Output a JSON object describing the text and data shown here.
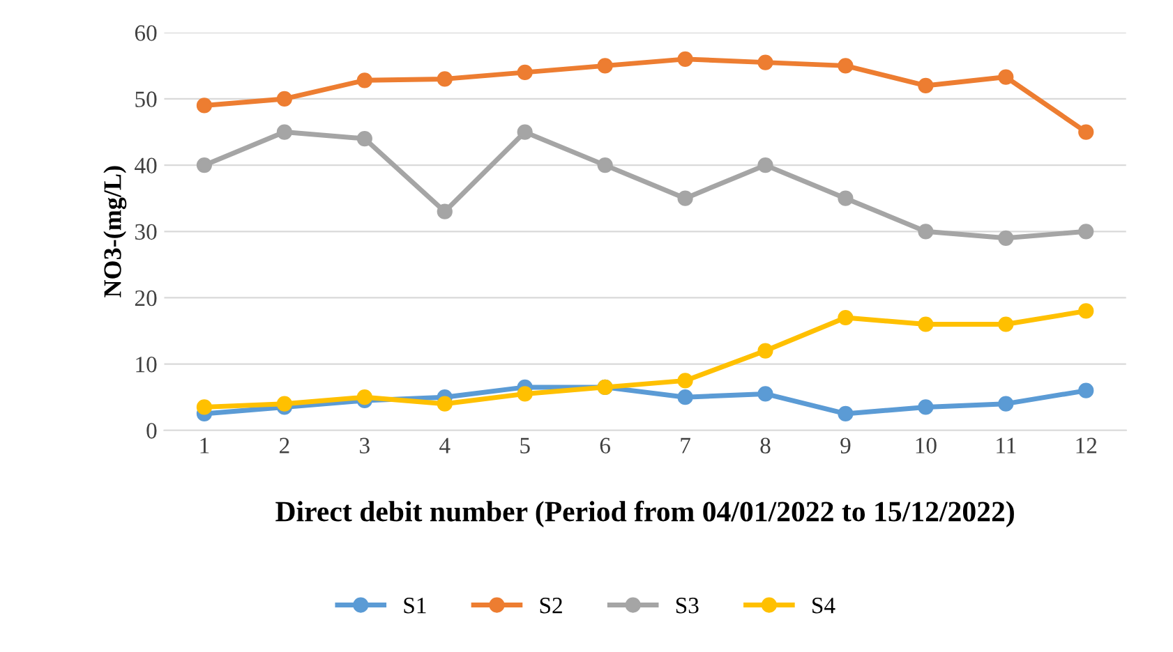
{
  "chart_data": {
    "type": "line",
    "xlabel": "Direct debit number (Period from 04/01/2022 to 15/12/2022)",
    "ylabel": "NO3-(mg/L)",
    "categories": [
      "1",
      "2",
      "3",
      "4",
      "5",
      "6",
      "7",
      "8",
      "9",
      "10",
      "11",
      "12"
    ],
    "series": [
      {
        "name": "S1",
        "color": "#5b9bd5",
        "values": [
          2.5,
          3.5,
          4.5,
          5,
          6.5,
          6.5,
          5,
          5.5,
          2.5,
          3.5,
          4,
          6
        ]
      },
      {
        "name": "S2",
        "color": "#ed7d31",
        "values": [
          49,
          50,
          52.8,
          53,
          54,
          55,
          56,
          55.5,
          55,
          52,
          53.3,
          45
        ]
      },
      {
        "name": "S3",
        "color": "#a5a5a5",
        "values": [
          40,
          45,
          44,
          33,
          45,
          40,
          35,
          40,
          35,
          30,
          29,
          30
        ]
      },
      {
        "name": "S4",
        "color": "#ffc000",
        "values": [
          3.5,
          4,
          5,
          4,
          5.5,
          6.5,
          7.5,
          12,
          17,
          16,
          16,
          18
        ]
      }
    ],
    "ylim": [
      0,
      60
    ],
    "yticks": [
      0,
      10,
      20,
      30,
      40,
      50,
      60
    ],
    "grid": "y",
    "legend": "bottom",
    "marker": "circle",
    "line_style": "solid"
  }
}
